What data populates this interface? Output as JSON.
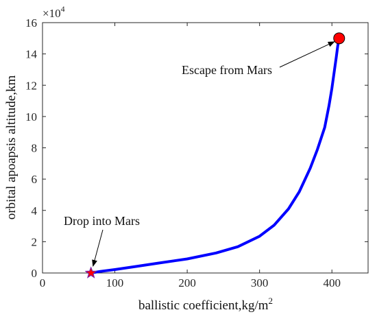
{
  "chart_data": {
    "type": "line",
    "xlabel": "ballistic coefficient,kg/m",
    "xlabel_sup": "2",
    "ylabel": "orbital apoapsis altitude,km",
    "y_multiplier": {
      "base": "×10",
      "exponent": "4"
    },
    "xlim": [
      0,
      450
    ],
    "ylim": [
      0,
      16
    ],
    "x_ticks": [
      0,
      100,
      200,
      300,
      400
    ],
    "y_ticks": [
      0,
      2,
      4,
      6,
      8,
      10,
      12,
      14,
      16
    ],
    "grid": false,
    "series": [
      {
        "color": "#0000ff",
        "x": [
          67,
          80,
          100,
          130,
          160,
          200,
          240,
          270,
          300,
          320,
          340,
          355,
          370,
          380,
          390,
          396,
          400,
          403,
          406,
          408,
          410
        ],
        "y": [
          0,
          0.1,
          0.22,
          0.42,
          0.63,
          0.9,
          1.28,
          1.68,
          2.35,
          3.05,
          4.1,
          5.2,
          6.7,
          7.9,
          9.3,
          10.7,
          11.8,
          12.8,
          13.8,
          14.5,
          15.0
        ]
      }
    ],
    "markers": [
      {
        "shape": "star",
        "x": 67,
        "y": 0,
        "fill": "#ff0000",
        "stroke": "#7a1fa2"
      },
      {
        "shape": "circle",
        "x": 410,
        "y": 15.0,
        "fill": "#ff0000",
        "stroke": "#000000"
      }
    ],
    "annotations": [
      {
        "text": "Escape from Mars",
        "point_x": 410,
        "point_y": 15.0
      },
      {
        "text": "Drop into Mars",
        "point_x": 67,
        "point_y": 0
      }
    ]
  }
}
